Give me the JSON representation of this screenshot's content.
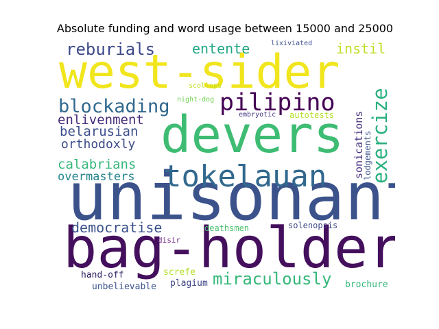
{
  "chart_data": {
    "type": "wordcloud",
    "title": "Absolute funding and word usage between 15000 and 25000",
    "words": [
      {
        "text": "unisonant",
        "color": "#3b528b"
      },
      {
        "text": "bag-holder",
        "color": "#440f5c"
      },
      {
        "text": "west-sider",
        "color": "#f1e51d"
      },
      {
        "text": "devers",
        "color": "#3ebc73"
      },
      {
        "text": "tokelauan",
        "color": "#31688e"
      },
      {
        "text": "pilipino",
        "color": "#440154"
      },
      {
        "text": "exercize",
        "color": "#2ab07f"
      },
      {
        "text": "blockading",
        "color": "#31688e"
      },
      {
        "text": "reburials",
        "color": "#3e4a89"
      },
      {
        "text": "miraculously",
        "color": "#35b779"
      },
      {
        "text": "democratise",
        "color": "#3b528b"
      },
      {
        "text": "enlivenment",
        "color": "#472c7a"
      },
      {
        "text": "belarusian",
        "color": "#3d4e8a"
      },
      {
        "text": "orthodoxly",
        "color": "#3e4c8a"
      },
      {
        "text": "calabrians",
        "color": "#35b779"
      },
      {
        "text": "overmasters",
        "color": "#25858e"
      },
      {
        "text": "entente",
        "color": "#22a785"
      },
      {
        "text": "instil",
        "color": "#bddf26"
      },
      {
        "text": "sonications",
        "color": "#46327e"
      },
      {
        "text": "lodgements",
        "color": "#3b528b"
      },
      {
        "text": "brochure",
        "color": "#35b779"
      },
      {
        "text": "unbelievable",
        "color": "#3b528b"
      },
      {
        "text": "hand-off",
        "color": "#2d1e5e"
      },
      {
        "text": "plagium",
        "color": "#3f4788"
      },
      {
        "text": "screfe",
        "color": "#b5de2b"
      },
      {
        "text": "solenopsis",
        "color": "#3e4a89"
      },
      {
        "text": "deathsmen",
        "color": "#4ac16d"
      },
      {
        "text": "disir",
        "color": "#6a1c81"
      },
      {
        "text": "autotests",
        "color": "#b5de2b"
      },
      {
        "text": "embryotic",
        "color": "#453781"
      },
      {
        "text": "night-dog",
        "color": "#75d054"
      },
      {
        "text": "scollops",
        "color": "#c0df25"
      },
      {
        "text": "lixiviated",
        "color": "#3d4e8a"
      }
    ]
  }
}
